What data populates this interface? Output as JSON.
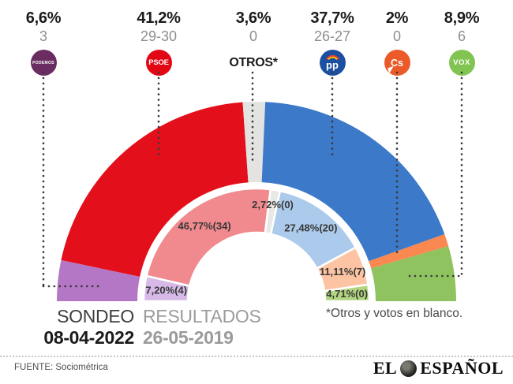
{
  "header": {
    "parties": [
      {
        "id": "podemos",
        "pct": "6,6%",
        "seats": "3",
        "logo_text": "PODEMOS",
        "logo_color": "#6b2d61"
      },
      {
        "id": "psoe",
        "pct": "41,2%",
        "seats": "29-30",
        "logo_text": "PSOE",
        "logo_color": "#e30613"
      },
      {
        "id": "otros",
        "pct": "3,6%",
        "seats": "0",
        "logo_text": "OTROS*",
        "logo_color": null
      },
      {
        "id": "pp",
        "pct": "37,7%",
        "seats": "26-27",
        "logo_text": "pp",
        "logo_color": "#1d4fa1"
      },
      {
        "id": "cs",
        "pct": "2%",
        "seats": "0",
        "logo_text": "Cs",
        "logo_color": "#eb5a28"
      },
      {
        "id": "vox",
        "pct": "8,9%",
        "seats": "6",
        "logo_text": "VOX",
        "logo_color": "#82c452"
      }
    ]
  },
  "chart_data": {
    "type": "pie",
    "subtype": "half-donut-two-rings",
    "categories": [
      "Podemos",
      "PSOE",
      "Otros*",
      "PP",
      "Cs",
      "VOX"
    ],
    "series": [
      {
        "name": "Sondeo 08-04-2022",
        "ring": "outer",
        "values": [
          6.6,
          41.2,
          3.6,
          37.7,
          2.0,
          8.9
        ],
        "seats": [
          "3",
          "29-30",
          "0",
          "26-27",
          "0",
          "6"
        ],
        "colors": [
          "#b477c5",
          "#e3101b",
          "#e3e3e1",
          "#3c7ac9",
          "#fa8851",
          "#8fc35f"
        ]
      },
      {
        "name": "Resultados 26-05-2019",
        "ring": "inner",
        "values": [
          7.2,
          46.77,
          2.72,
          27.48,
          11.11,
          4.71
        ],
        "seats": [
          4,
          34,
          0,
          20,
          7,
          0
        ],
        "labels": [
          "7,20%(4)",
          "46,77%(34)",
          "2,72%(0)",
          "27,48%(20)",
          "11,11%(7)",
          "4,71%(0)"
        ],
        "colors": [
          "#d6b9e6",
          "#f08a8e",
          "#e8e8e6",
          "#accaec",
          "#fcc4a2",
          "#b2d57f"
        ]
      }
    ],
    "orientation": "semicircle 180deg, drawn left to right",
    "label_color": "#383838"
  },
  "footer": {
    "sondeo_label": "SONDEO",
    "sondeo_date": "08-04-2022",
    "resultados_label": "RESULTADOS",
    "resultados_date": "26-05-2019",
    "note": "*Otros y votos en blanco.",
    "source": "FUENTE: Sociométrica",
    "brand_el": "EL",
    "brand_espanol": "ESPAÑOL"
  }
}
